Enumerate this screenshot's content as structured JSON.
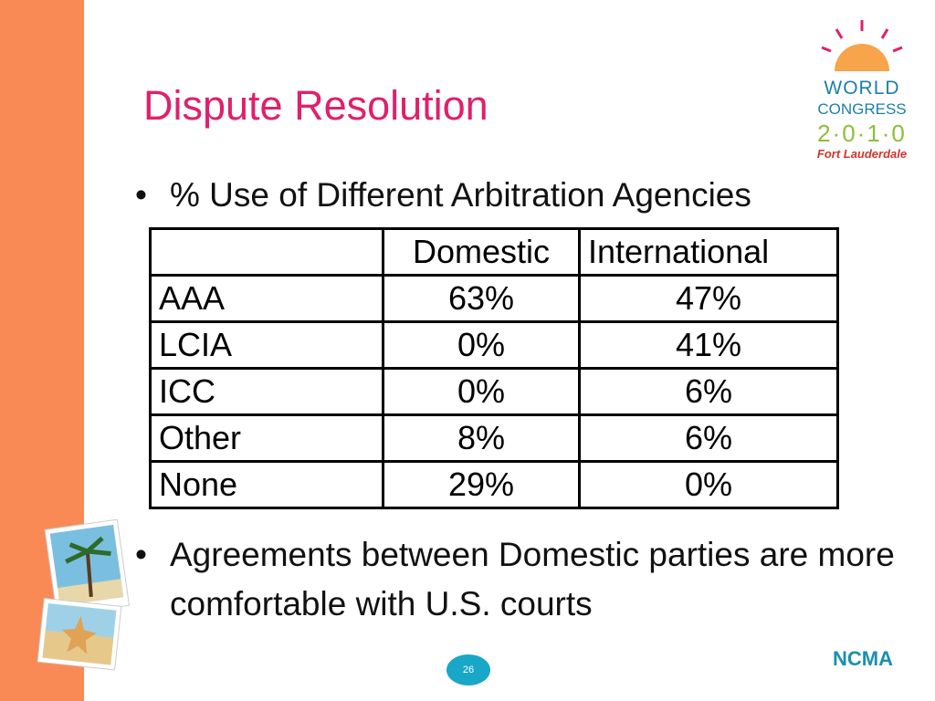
{
  "title": "Dispute Resolution",
  "bullets": [
    "% Use of Different Arbitration Agencies",
    "Agreements between Domestic parties are more comfortable with U.S. courts"
  ],
  "table": {
    "header": [
      "Domestic",
      "International"
    ],
    "rows": [
      [
        "AAA",
        "63%",
        "47%"
      ],
      [
        "LCIA",
        "0%",
        "41%"
      ],
      [
        "ICC",
        "0%",
        "6%"
      ],
      [
        "Other",
        "8%",
        "6%"
      ],
      [
        "None",
        "29%",
        "0%"
      ]
    ]
  },
  "logo": {
    "lines": [
      "WORLD",
      "CONGRESS",
      "2·0·1·0",
      "Fort Lauderdale"
    ]
  },
  "footer": {
    "page": "26",
    "org": "NCMA"
  }
}
